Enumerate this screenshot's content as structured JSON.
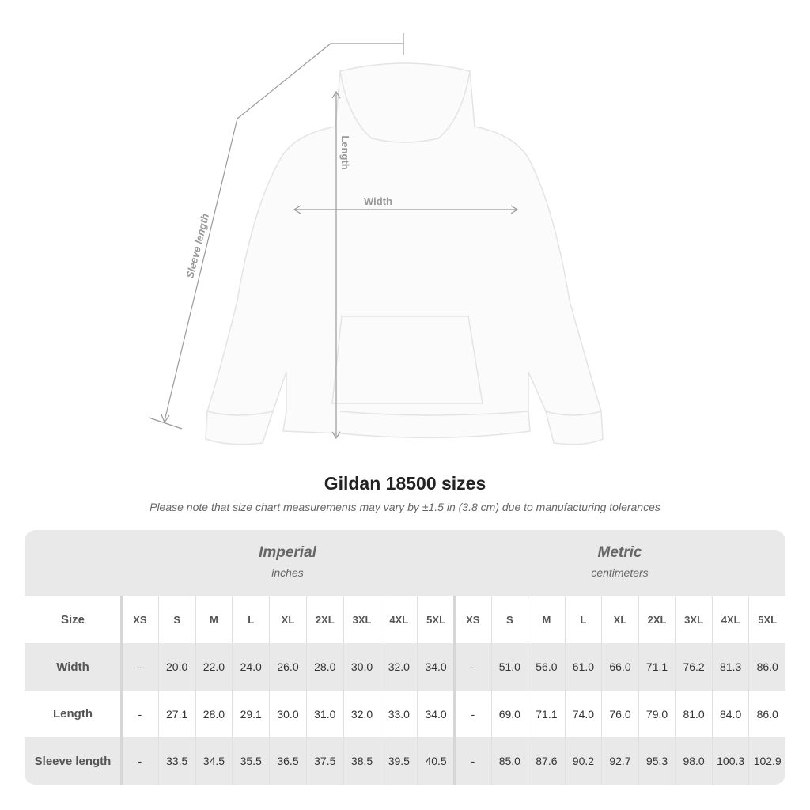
{
  "illustration": {
    "labels": {
      "length": "Length",
      "width": "Width",
      "sleeve": "Sleeve length"
    }
  },
  "title": "Gildan 18500 sizes",
  "subtitle": "Please note that size chart measurements may vary by ±1.5 in (3.8 cm) due to manufacturing tolerances",
  "table": {
    "groups": [
      {
        "title": "Imperial",
        "unit": "inches"
      },
      {
        "title": "Metric",
        "unit": "centimeters"
      }
    ],
    "size_label": "Size",
    "sizes": [
      "XS",
      "S",
      "M",
      "L",
      "XL",
      "2XL",
      "3XL",
      "4XL",
      "5XL"
    ],
    "rows": [
      {
        "label": "Width",
        "imperial": [
          "-",
          "20.0",
          "22.0",
          "24.0",
          "26.0",
          "28.0",
          "30.0",
          "32.0",
          "34.0"
        ],
        "metric": [
          "-",
          "51.0",
          "56.0",
          "61.0",
          "66.0",
          "71.1",
          "76.2",
          "81.3",
          "86.0"
        ]
      },
      {
        "label": "Length",
        "imperial": [
          "-",
          "27.1",
          "28.0",
          "29.1",
          "30.0",
          "31.0",
          "32.0",
          "33.0",
          "34.0"
        ],
        "metric": [
          "-",
          "69.0",
          "71.1",
          "74.0",
          "76.0",
          "79.0",
          "81.0",
          "84.0",
          "86.0"
        ]
      },
      {
        "label": "Sleeve length",
        "imperial": [
          "-",
          "33.5",
          "34.5",
          "35.5",
          "36.5",
          "37.5",
          "38.5",
          "39.5",
          "40.5"
        ],
        "metric": [
          "-",
          "85.0",
          "87.6",
          "90.2",
          "92.7",
          "95.3",
          "98.0",
          "100.3",
          "102.9"
        ]
      }
    ]
  },
  "colors": {
    "band_gray": "#e9e9e9",
    "text": "#333333",
    "measure_line": "#9a9a9a"
  }
}
